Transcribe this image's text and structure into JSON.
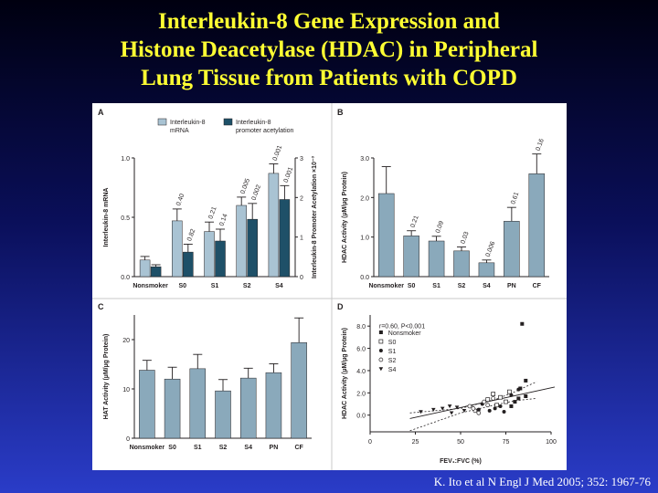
{
  "slide": {
    "title_lines": [
      "Interleukin-8 Gene Expression and",
      "Histone Deacetylase (HDAC) in Peripheral",
      "Lung Tissue from Patients with COPD"
    ],
    "citation": "K. Ito et al N Engl J Med 2005; 352: 1967-76"
  },
  "colors": {
    "light_bar": "#a9c3d3",
    "dark_bar": "#1e5068",
    "panel_bar": "#8aa9bb",
    "grid_line": "#c8c8c8",
    "axis": "#231f20"
  },
  "chart_data": [
    {
      "panel": "A",
      "type": "bar",
      "categories": [
        "Nonsmoker",
        "S0",
        "S1",
        "S2",
        "S4"
      ],
      "ylabel": "Interleukin-8 mRNA",
      "ylabel_right": "Interleukin-8 Promoter Acetylation ×10⁻³",
      "ylim": [
        0,
        1.0
      ],
      "yticks": [
        "0.0",
        "0.5",
        "1.0"
      ],
      "ylim_right": [
        0,
        3
      ],
      "yticks_right": [
        "0",
        "1",
        "2",
        "3"
      ],
      "series": [
        {
          "name": "Interleukin-8 mRNA",
          "axis": "left",
          "values": [
            0.14,
            0.47,
            0.38,
            0.6,
            0.87
          ],
          "errors": [
            0.03,
            0.1,
            0.08,
            0.07,
            0.08
          ],
          "pvalues": [
            "",
            "0.40",
            "0.21",
            "0.005",
            "0.001"
          ]
        },
        {
          "name": "Interleukin-8 promoter acetylation",
          "axis": "right",
          "values": [
            0.25,
            0.62,
            0.9,
            1.45,
            1.95
          ],
          "errors": [
            0.05,
            0.2,
            0.3,
            0.4,
            0.35
          ],
          "pvalues": [
            "",
            "0.82",
            "0.14",
            "0.002",
            "0.001"
          ]
        }
      ]
    },
    {
      "panel": "B",
      "type": "bar",
      "categories": [
        "Nonsmoker",
        "S0",
        "S1",
        "S2",
        "S4",
        "PN",
        "CF"
      ],
      "ylabel": "HDAC Activity (µM/µg Protein)",
      "ylim": [
        0,
        3.0
      ],
      "yticks": [
        "0.0",
        "1.0",
        "2.0",
        "3.0"
      ],
      "values": [
        2.1,
        1.03,
        0.9,
        0.65,
        0.35,
        1.4,
        2.6
      ],
      "errors": [
        0.68,
        0.13,
        0.12,
        0.1,
        0.07,
        0.35,
        0.5
      ],
      "pvalues": [
        "",
        "0.21",
        "0.09",
        "0.03",
        "0.006",
        "0.61",
        "0.16"
      ]
    },
    {
      "panel": "C",
      "type": "bar",
      "categories": [
        "Nonsmoker",
        "S0",
        "S1",
        "S2",
        "S4",
        "PN",
        "CF"
      ],
      "ylabel": "HAT Activity (µM/µg Protein)",
      "ylim": [
        0,
        25
      ],
      "yticks": [
        "0",
        "10",
        "20"
      ],
      "values": [
        13.8,
        12.0,
        14.1,
        9.6,
        12.2,
        13.3,
        19.4
      ],
      "errors": [
        2.0,
        2.4,
        2.9,
        2.3,
        2.0,
        1.8,
        5.0
      ]
    },
    {
      "panel": "D",
      "type": "scatter",
      "xlabel": "FEV₁:FVC (%)",
      "ylabel": "HDAC Activity (µM/µg Protein)",
      "xlim": [
        0,
        100
      ],
      "xticks": [
        "0",
        "25",
        "50",
        "75",
        "100"
      ],
      "ylim": [
        -1.5,
        9.0
      ],
      "yticks": [
        "0.0",
        "2.0",
        "4.0",
        "6.0",
        "8.0"
      ],
      "annotation": "r=0.60, P<0.001",
      "fit": {
        "slope": 0.0353,
        "intercept": -1.08
      },
      "ci_lower": [
        [
          22,
          -1.4
        ],
        [
          50,
          0.2
        ],
        [
          70,
          0.95
        ],
        [
          80,
          1.3
        ],
        [
          92,
          1.5
        ]
      ],
      "ci_upper": [
        [
          22,
          0.2
        ],
        [
          50,
          0.6
        ],
        [
          70,
          1.45
        ],
        [
          80,
          2.1
        ],
        [
          92,
          3.0
        ]
      ],
      "series": [
        {
          "name": "Nonsmoker",
          "marker": "filled-square",
          "points": [
            [
              84,
              8.2
            ],
            [
              86,
              3.1
            ],
            [
              83,
              2.4
            ],
            [
              80,
              1.2
            ],
            [
              78,
              0.8
            ],
            [
              82,
              1.5
            ],
            [
              86,
              1.7
            ]
          ]
        },
        {
          "name": "S0",
          "marker": "open-square",
          "points": [
            [
              68,
              1.9
            ],
            [
              72,
              1.6
            ],
            [
              75,
              1.2
            ],
            [
              77,
              2.1
            ],
            [
              70,
              0.9
            ],
            [
              65,
              1.4
            ]
          ]
        },
        {
          "name": "S1",
          "marker": "filled-circle",
          "points": [
            [
              62,
              1.0
            ],
            [
              66,
              0.4
            ],
            [
              69,
              0.6
            ],
            [
              72,
              0.8
            ],
            [
              78,
              1.8
            ],
            [
              74,
              0.3
            ],
            [
              60,
              0.5
            ],
            [
              82,
              2.3
            ]
          ]
        },
        {
          "name": "S2",
          "marker": "open-circle",
          "points": [
            [
              55,
              0.8
            ],
            [
              58,
              0.4
            ],
            [
              63,
              1.2
            ],
            [
              60,
              0.2
            ],
            [
              65,
              0.9
            ],
            [
              68,
              1.5
            ],
            [
              57,
              0.6
            ]
          ]
        },
        {
          "name": "S4",
          "marker": "filled-triangle",
          "points": [
            [
              28,
              0.3
            ],
            [
              35,
              0.5
            ],
            [
              40,
              0.6
            ],
            [
              45,
              0.2
            ],
            [
              48,
              0.7
            ],
            [
              52,
              0.4
            ],
            [
              44,
              0.8
            ]
          ]
        }
      ]
    }
  ]
}
